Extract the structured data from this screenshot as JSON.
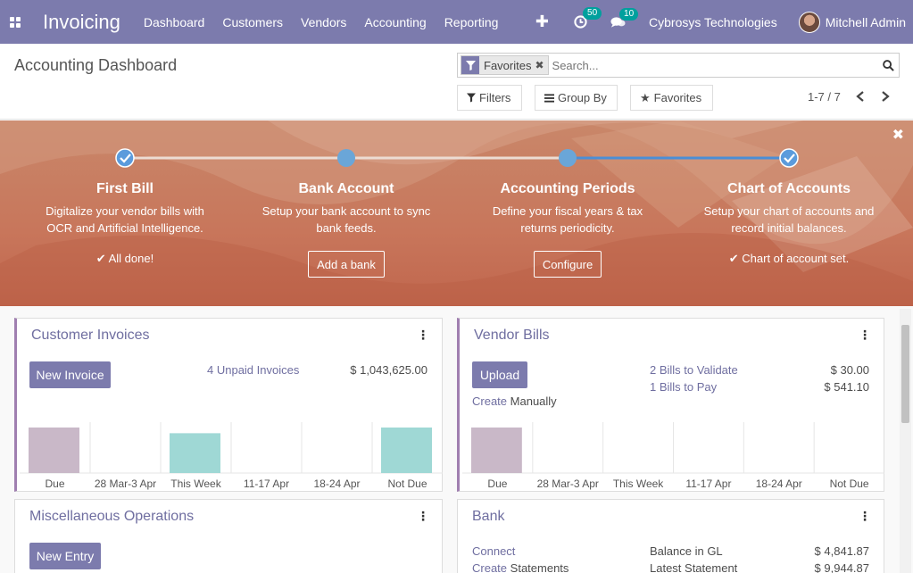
{
  "navbar": {
    "app_name": "Invoicing",
    "menu": [
      "Dashboard",
      "Customers",
      "Vendors",
      "Accounting",
      "Reporting"
    ],
    "activity_count": "50",
    "message_count": "10",
    "company": "Cybrosys Technologies",
    "user": "Mitchell Admin"
  },
  "control_panel": {
    "title": "Accounting Dashboard",
    "facet_label": "Favorites",
    "search_placeholder": "Search...",
    "filters_label": "Filters",
    "groupby_label": "Group By",
    "favorites_label": "Favorites",
    "pager": "1-7 / 7"
  },
  "banner": {
    "steps": [
      {
        "title": "First Bill",
        "desc1": "Digitalize your vendor bills with",
        "desc2": "OCR and Artificial Intelligence.",
        "done": "All done!"
      },
      {
        "title": "Bank Account",
        "desc1": "Setup your bank account to sync",
        "desc2": "bank feeds.",
        "button": "Add a bank"
      },
      {
        "title": "Accounting Periods",
        "desc1": "Define your fiscal years & tax",
        "desc2": "returns periodicity.",
        "button": "Configure"
      },
      {
        "title": "Chart of Accounts",
        "desc1": "Setup your chart of accounts and",
        "desc2": "record initial balances.",
        "done": "Chart of account set."
      }
    ]
  },
  "cards": {
    "customer_invoices": {
      "title": "Customer Invoices",
      "button": "New Invoice",
      "link": "4 Unpaid Invoices",
      "amount": "$ 1,043,625.00"
    },
    "vendor_bills": {
      "title": "Vendor Bills",
      "button": "Upload",
      "create_link": "Create",
      "create_suffix": "Manually",
      "link1": "2 Bills to Validate",
      "amount1": "$ 30.00",
      "link2": "1 Bills to Pay",
      "amount2": "$ 541.10"
    },
    "misc": {
      "title": "Miscellaneous Operations",
      "button": "New Entry"
    },
    "bank": {
      "title": "Bank",
      "link1": "Connect",
      "link2": "Create",
      "link2_suffix": "Statements",
      "label1": "Balance in GL",
      "amount1": "$ 4,841.87",
      "label2": "Latest Statement",
      "amount2": "$ 9,944.87"
    }
  },
  "chart_data": [
    {
      "type": "bar",
      "categories": [
        "Due",
        "28 Mar-3 Apr",
        "This Week",
        "11-17 Apr",
        "18-24 Apr",
        "Not Due"
      ],
      "values": [
        4,
        0,
        3.5,
        0,
        0,
        4
      ],
      "colors": [
        "#c9b8c8",
        "#c9b8c8",
        "#9fd8d5",
        "#9fd8d5",
        "#9fd8d5",
        "#9fd8d5"
      ]
    },
    {
      "type": "bar",
      "categories": [
        "Due",
        "28 Mar-3 Apr",
        "This Week",
        "11-17 Apr",
        "18-24 Apr",
        "Not Due"
      ],
      "values": [
        4,
        0,
        0,
        0,
        0,
        0
      ],
      "colors": [
        "#c9b8c8",
        "#c9b8c8",
        "#9fd8d5",
        "#9fd8d5",
        "#9fd8d5",
        "#9fd8d5"
      ]
    }
  ]
}
